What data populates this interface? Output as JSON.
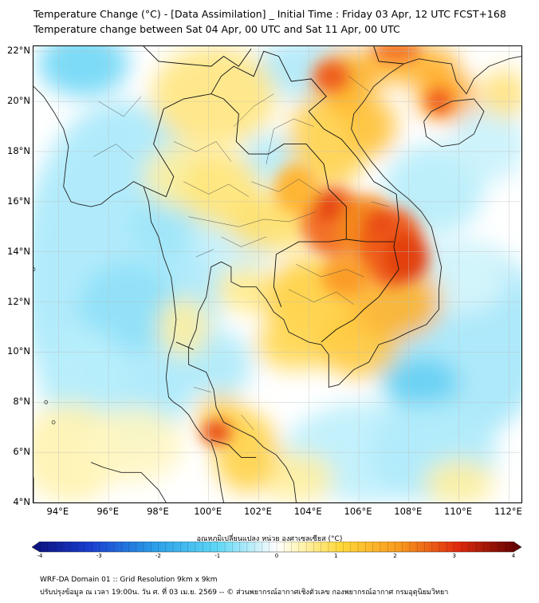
{
  "header": {
    "title_line1": "Temperature Change (°C) - [Data Assimilation] _ Initial Time : Friday 03 Apr, 12 UTC FCST+168",
    "title_line2": "Temperature change between Sat 04 Apr, 00 UTC and Sat 11 Apr, 00 UTC"
  },
  "map": {
    "lat_labels": [
      "22°N",
      "20°N",
      "18°N",
      "16°N",
      "14°N",
      "12°N",
      "10°N",
      "8°N",
      "6°N",
      "4°N"
    ],
    "lon_labels": [
      "94°E",
      "96°E",
      "98°E",
      "100°E",
      "102°E",
      "104°E",
      "106°E",
      "108°E",
      "110°E",
      "112°E"
    ],
    "lat_values": [
      22,
      20,
      18,
      16,
      14,
      12,
      10,
      8,
      6,
      4
    ],
    "lon_values": [
      94,
      96,
      98,
      100,
      102,
      104,
      106,
      108,
      110,
      112
    ],
    "extent": {
      "lon_min": 93.0,
      "lon_max": 112.5,
      "lat_min": 4.0,
      "lat_max": 22.2
    },
    "colors": {
      "cold_extreme": "#0a1a8c",
      "cold": "#29c5f0",
      "neutral": "#ffffff",
      "warm": "#ffd23a",
      "hot": "#e83a10",
      "hot_extreme": "#5a0000"
    }
  },
  "colorbar": {
    "title": "อุณหภูมิเปลี่ยนแปลง หน่วย องศาเซลเซียส (°C)",
    "ticks": [
      "-4",
      "-3",
      "-2",
      "-1",
      "0",
      "1",
      "2",
      "3",
      "4"
    ],
    "min": -4,
    "max": 4
  },
  "footer": {
    "line1": "WRF-DA Domain 01 :: Grid Resolution 9km x 9km",
    "line2": "ปรับปรุงข้อมูล ณ เวลา 19:00น. วัน ศ. ที่ 03 เม.ย. 2569 -- © ส่วนพยากรณ์อากาศเชิงตัวเลข กองพยากรณ์อากาศ กรมอุตุนิยมวิทยา"
  }
}
